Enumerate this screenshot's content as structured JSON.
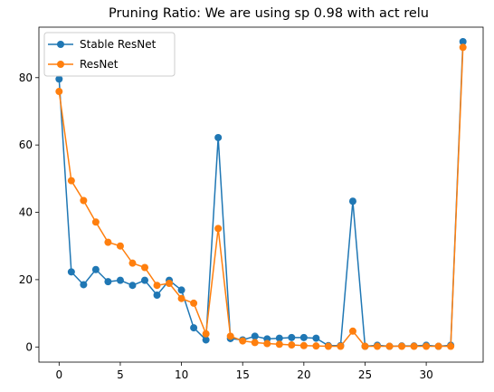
{
  "chart_data": {
    "type": "line",
    "title": "Pruning Ratio: We are using sp 0.98 with act relu",
    "xlabel": "",
    "ylabel": "",
    "xlim": [
      -1.65,
      34.65
    ],
    "ylim": [
      -4.5,
      95
    ],
    "xticks": [
      0,
      5,
      10,
      15,
      20,
      25,
      30
    ],
    "yticks": [
      0,
      20,
      40,
      60,
      80
    ],
    "grid": false,
    "legend_position": "upper-left",
    "x": [
      0,
      1,
      2,
      3,
      4,
      5,
      6,
      7,
      8,
      9,
      10,
      11,
      12,
      13,
      14,
      15,
      16,
      17,
      18,
      19,
      20,
      21,
      22,
      23,
      24,
      25,
      26,
      27,
      28,
      29,
      30,
      31,
      32,
      33
    ],
    "series": [
      {
        "name": "Stable ResNet",
        "color": "#1f77b4",
        "values": [
          79.6,
          22.3,
          18.5,
          23.0,
          19.4,
          19.8,
          18.3,
          19.8,
          15.4,
          19.8,
          16.9,
          5.7,
          2.1,
          62.2,
          2.5,
          2.1,
          3.2,
          2.4,
          2.6,
          2.8,
          2.8,
          2.6,
          0.4,
          0.4,
          43.3,
          0.2,
          0.5,
          0.2,
          0.3,
          0.3,
          0.5,
          0.2,
          0.5,
          90.7
        ]
      },
      {
        "name": "ResNet",
        "color": "#ff7f0e",
        "values": [
          75.9,
          49.4,
          43.5,
          37.1,
          31.1,
          30.0,
          24.9,
          23.6,
          18.3,
          18.9,
          14.4,
          13.0,
          3.9,
          35.2,
          3.2,
          1.8,
          1.3,
          1.0,
          0.8,
          0.6,
          0.4,
          0.3,
          0.2,
          0.2,
          4.7,
          0.2,
          0.2,
          0.2,
          0.2,
          0.2,
          0.2,
          0.2,
          0.2,
          89.0
        ]
      }
    ]
  }
}
